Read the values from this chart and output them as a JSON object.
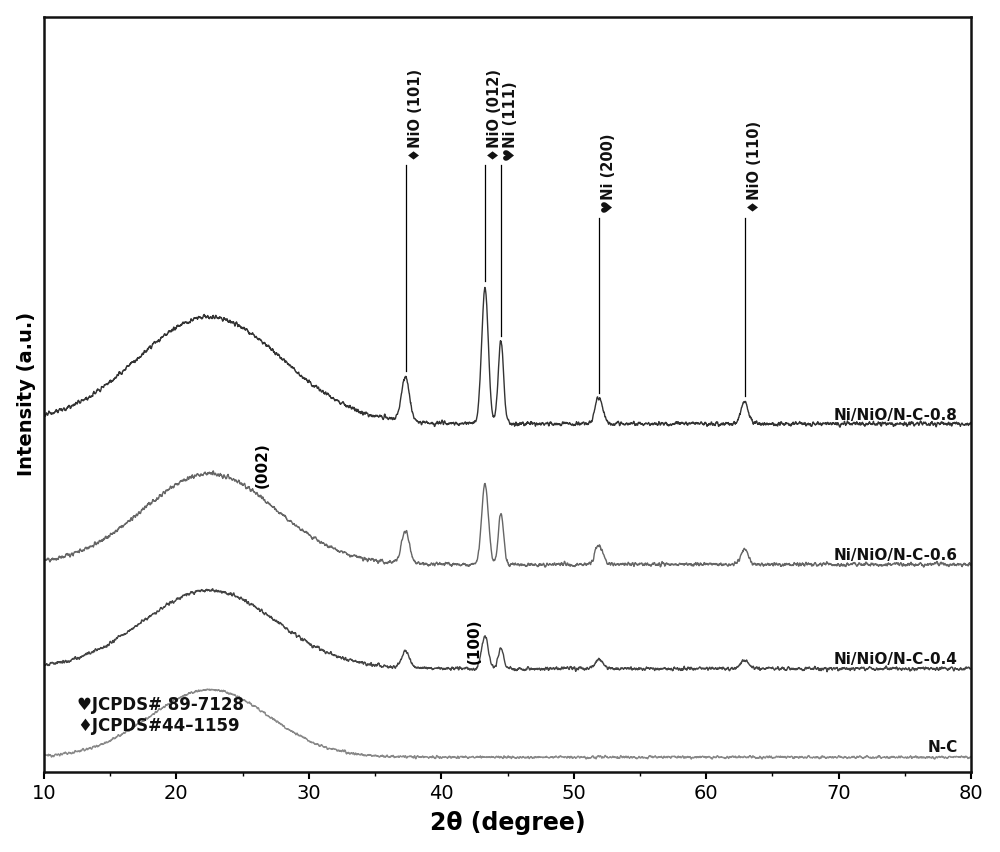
{
  "xlabel": "2θ (degree)",
  "ylabel": "Intensity (a.u.)",
  "xlim": [
    10,
    80
  ],
  "xticks": [
    10,
    20,
    30,
    40,
    50,
    60,
    70,
    80
  ],
  "curve_colors": {
    "NC": "#888888",
    "04": "#444444",
    "06": "#666666",
    "08": "#333333"
  },
  "offsets": {
    "NC": 0.0,
    "04": 1.0,
    "06": 2.2,
    "08": 3.8
  },
  "peak_positions": {
    "NiO101": 37.3,
    "NiO012": 43.3,
    "Ni111": 44.5,
    "Ni200": 51.9,
    "NiO110": 62.9
  },
  "ann_labels": [
    {
      "x": 37.3,
      "text": "♦NiO (101)"
    },
    {
      "x": 43.3,
      "text": "♦NiO (012)"
    },
    {
      "x": 44.5,
      "text": "♥Ni (111)"
    },
    {
      "x": 51.9,
      "text": "♥Ni (200)"
    },
    {
      "x": 62.9,
      "text": "♦NiO (110)"
    }
  ],
  "legend_text1": "♥JCPDS# 89-7128",
  "legend_text2": "♦JCPDS#44–1159",
  "sample_labels": {
    "NC": "N-C",
    "04": "Ni/NiO/N-C-0.4",
    "06": "Ni/NiO/N-C-0.6",
    "08": "Ni/NiO/N-C-0.8"
  },
  "background_color": "#ffffff"
}
